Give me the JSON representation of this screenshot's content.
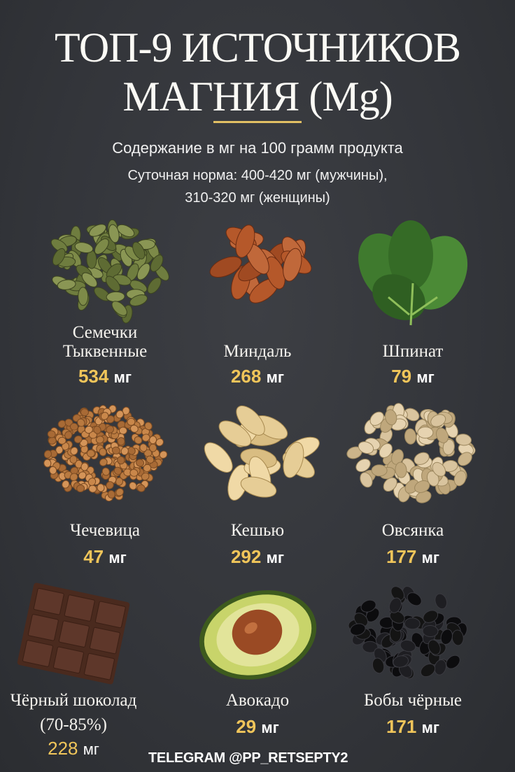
{
  "title_line1": "ТОП-9 ИСТОЧНИКОВ",
  "title_line2": "МАГНИЯ (Mg)",
  "subtitle": "Содержание в мг на 100 грамм продукта",
  "norm_line1": "Суточная норма: 400-420 мг (мужчины),",
  "norm_line2": "310-320 мг (женщины)",
  "accent_color": "#f0c55a",
  "background_color": "#35373b",
  "unit": "мг",
  "items": [
    {
      "name1": "Семечки",
      "name2": "Тыквенные",
      "value": "534",
      "icon": "pumpkin-seeds"
    },
    {
      "name1": "Миндаль",
      "name2": "",
      "value": "268",
      "icon": "almonds"
    },
    {
      "name1": "Шпинат",
      "name2": "",
      "value": "79",
      "icon": "spinach"
    },
    {
      "name1": "Чечевица",
      "name2": "",
      "value": "47",
      "icon": "lentils"
    },
    {
      "name1": "Кешью",
      "name2": "",
      "value": "292",
      "icon": "cashews"
    },
    {
      "name1": "Овсянка",
      "name2": "",
      "value": "177",
      "icon": "oats"
    },
    {
      "name1": "Чёрный шоколад",
      "name2": "(70-85%)",
      "value": "228",
      "icon": "dark-chocolate"
    },
    {
      "name1": "Авокадо",
      "name2": "",
      "value": "29",
      "icon": "avocado"
    },
    {
      "name1": "Бобы чёрные",
      "name2": "",
      "value": "171",
      "icon": "black-beans"
    }
  ],
  "footer": "TELEGRAM @PP_RETSEPTY2"
}
